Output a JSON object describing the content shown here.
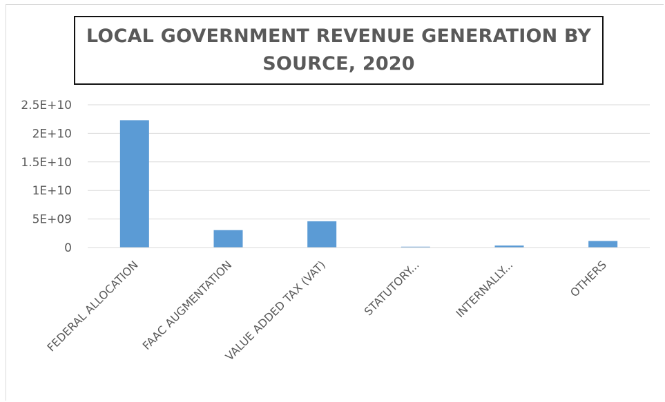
{
  "chart_data": {
    "type": "bar",
    "title": "LOCAL GOVERNMENT REVENUE GENERATION BY SOURCE, 2020",
    "xlabel": "",
    "ylabel": "",
    "categories": [
      "FEDERAL ALLOCATION",
      "FAAC AUGMENTATION",
      "VALUE ADDED TAX (VAT)",
      "STATUTORY...",
      "INTERNALLY...",
      "OTHERS"
    ],
    "values": [
      22300000000,
      3050000000,
      4600000000,
      150000000,
      350000000,
      1150000000
    ],
    "ylim": [
      0,
      25000000000
    ],
    "yticks": [
      0,
      5000000000,
      10000000000,
      15000000000,
      20000000000,
      25000000000
    ],
    "ytick_labels": [
      "0",
      "5E+09",
      "1E+10",
      "1.5E+10",
      "2E+10",
      "2.5E+10"
    ],
    "grid": true,
    "legend": "none",
    "bar_color": "#5b9bd5",
    "grid_color": "#d9d9d9"
  }
}
